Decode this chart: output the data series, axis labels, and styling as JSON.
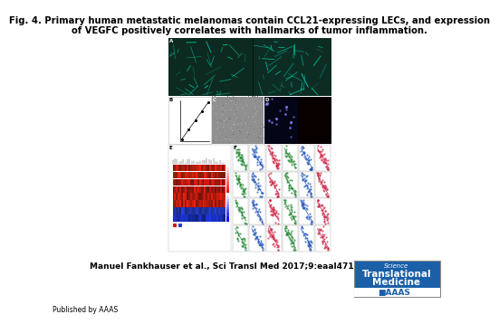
{
  "title_line1": "Fig. 4. Primary human metastatic melanomas contain CCL21-expressing LECs, and expression",
  "title_line2": "of VEGFC positively correlates with hallmarks of tumor inflammation.",
  "citation": "Manuel Fankhauser et al., Sci Transl Med 2017;9:eaal4712",
  "published_by": "Published by AAAS",
  "background_color": "#ffffff",
  "title_fontsize": 7.2,
  "citation_fontsize": 6.5,
  "published_fontsize": 5.5,
  "journal_bg": "#1a5fa8",
  "journal_text1": "Science",
  "journal_text2": "Translational",
  "journal_text3": "Medicine",
  "panA_bg": "#0d2a20",
  "panA_cyan": "#00ccaa",
  "panC_gray": "#909090",
  "panD1_bg": "#050518",
  "panD2_bg": "#080000",
  "scatter_green": "#228833",
  "scatter_blue": "#2255bb",
  "scatter_red": "#cc2244",
  "heatmap_red": "#cc2200",
  "heatmap_blue": "#2244cc"
}
